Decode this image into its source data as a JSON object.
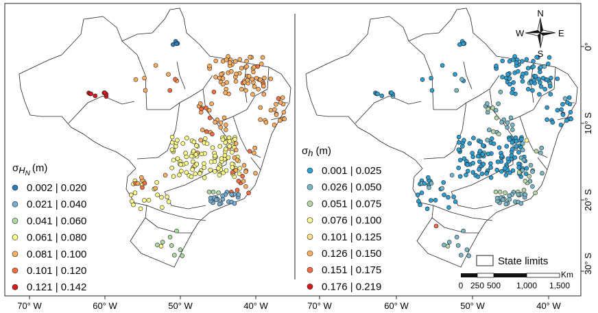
{
  "panels": [
    {
      "id": "left",
      "legend": {
        "title_main": "σ",
        "title_sub": "H",
        "title_subsub": "N",
        "title_unit": "(m)",
        "classes": [
          {
            "label": "0.002 | 0.020",
            "color": "#2c7bb6"
          },
          {
            "label": "0.021 | 0.040",
            "color": "#74add1"
          },
          {
            "label": "0.041 | 0.060",
            "color": "#abd9a0"
          },
          {
            "label": "0.061 | 0.080",
            "color": "#ffff8c"
          },
          {
            "label": "0.081 | 0.100",
            "color": "#fdae61"
          },
          {
            "label": "0.101 | 0.120",
            "color": "#f46d43"
          },
          {
            "label": "0.121 | 0.142",
            "color": "#d7191c"
          }
        ]
      }
    },
    {
      "id": "right",
      "legend": {
        "title_main": "σ",
        "title_sub": "h",
        "title_unit": "(m)",
        "classes": [
          {
            "label": "0.001 | 0.025",
            "color": "#2c9ed1"
          },
          {
            "label": "0.026 | 0.050",
            "color": "#79b7c7"
          },
          {
            "label": "0.051 | 0.075",
            "color": "#b5d6a6"
          },
          {
            "label": "0.076 | 0.100",
            "color": "#ffff99"
          },
          {
            "label": "0.101 | 0.125",
            "color": "#fee08b"
          },
          {
            "label": "0.126 | 0.150",
            "color": "#fdae61"
          },
          {
            "label": "0.151 | 0.175",
            "color": "#f46d43"
          },
          {
            "label": "0.176 | 0.219",
            "color": "#d7191c"
          }
        ]
      }
    }
  ],
  "axes": {
    "x_ticks": [
      "70° W",
      "60° W",
      "50° W",
      "40° W",
      "70° W",
      "60° W",
      "50° W",
      "40° W"
    ],
    "y_ticks": [
      "0°",
      "10° S",
      "20° S",
      "30° S"
    ]
  },
  "compass": {
    "n": "N",
    "s": "S",
    "e": "E",
    "w": "W"
  },
  "state_limits_label": "State limits",
  "scalebar": {
    "unit": "Km",
    "labels": [
      "0",
      "250",
      "500",
      "1,000",
      "1,500"
    ]
  }
}
